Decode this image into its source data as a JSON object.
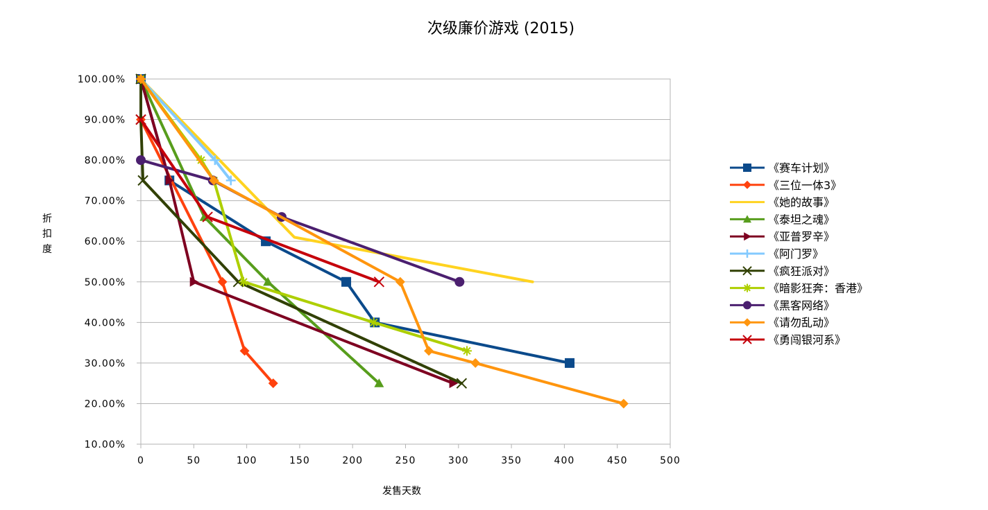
{
  "chart_data": {
    "type": "line",
    "title": "次级廉价游戏 (2015)",
    "xlabel": "发售天数",
    "ylabel": "折扣度",
    "xlim": [
      0,
      500
    ],
    "ylim": [
      0.1,
      1.0
    ],
    "x_ticks": [
      "0",
      "50",
      "100",
      "150",
      "200",
      "250",
      "300",
      "350",
      "400",
      "450",
      "500"
    ],
    "y_ticks": [
      "10.00%",
      "20.00%",
      "30.00%",
      "40.00%",
      "50.00%",
      "60.00%",
      "70.00%",
      "80.00%",
      "90.00%",
      "100.00%"
    ],
    "grid": "horizontal",
    "legend_position": "right",
    "series": [
      {
        "name": "《赛车计划》",
        "color": "#0b4a8b",
        "marker": "square",
        "x": [
          0,
          27,
          118,
          194,
          221,
          405
        ],
        "y": [
          1.0,
          0.75,
          0.6,
          0.5,
          0.4,
          0.3
        ]
      },
      {
        "name": "《三位一体3》",
        "color": "#ff420e",
        "marker": "diamond",
        "x": [
          0,
          0,
          77,
          98,
          125
        ],
        "y": [
          1.0,
          0.9,
          0.5,
          0.33,
          0.25
        ]
      },
      {
        "name": "《她的故事》",
        "color": "#ffd320",
        "marker": "none",
        "x": [
          0,
          145,
          370
        ],
        "y": [
          1.0,
          0.61,
          0.5
        ]
      },
      {
        "name": "《泰坦之魂》",
        "color": "#579d1c",
        "marker": "triangle-up",
        "x": [
          0,
          60,
          120,
          225
        ],
        "y": [
          1.0,
          0.66,
          0.5,
          0.25
        ]
      },
      {
        "name": "《亚普罗辛》",
        "color": "#7e0021",
        "marker": "triangle-right",
        "x": [
          0,
          27,
          50,
          295
        ],
        "y": [
          1.0,
          0.75,
          0.5,
          0.25
        ]
      },
      {
        "name": "《阿门罗》",
        "color": "#83caff",
        "marker": "plus",
        "x": [
          0,
          70,
          85
        ],
        "y": [
          1.0,
          0.8,
          0.75
        ]
      },
      {
        "name": "《疯狂派对》",
        "color": "#314004",
        "marker": "x",
        "x": [
          0,
          0,
          2,
          92,
          303
        ],
        "y": [
          1.0,
          0.9,
          0.75,
          0.5,
          0.25
        ]
      },
      {
        "name": "《暗影狂奔：香港》",
        "color": "#aecf00",
        "marker": "asterisk",
        "x": [
          0,
          57,
          69,
          97,
          220,
          308
        ],
        "y": [
          1.0,
          0.8,
          0.75,
          0.5,
          0.4,
          0.33
        ]
      },
      {
        "name": "《黑客网络》",
        "color": "#4b1f6f",
        "marker": "circle",
        "x": [
          0,
          68,
          133,
          301
        ],
        "y": [
          0.8,
          0.75,
          0.66,
          0.5
        ]
      },
      {
        "name": "《请勿乱动》",
        "color": "#ff950e",
        "marker": "diamond",
        "x": [
          0,
          69,
          245,
          272,
          316,
          456
        ],
        "y": [
          1.0,
          0.75,
          0.5,
          0.33,
          0.3,
          0.2
        ]
      },
      {
        "name": "《勇闯银河系》",
        "color": "#c5000b",
        "marker": "x",
        "x": [
          0,
          63,
          225
        ],
        "y": [
          0.9,
          0.66,
          0.5
        ]
      }
    ]
  }
}
